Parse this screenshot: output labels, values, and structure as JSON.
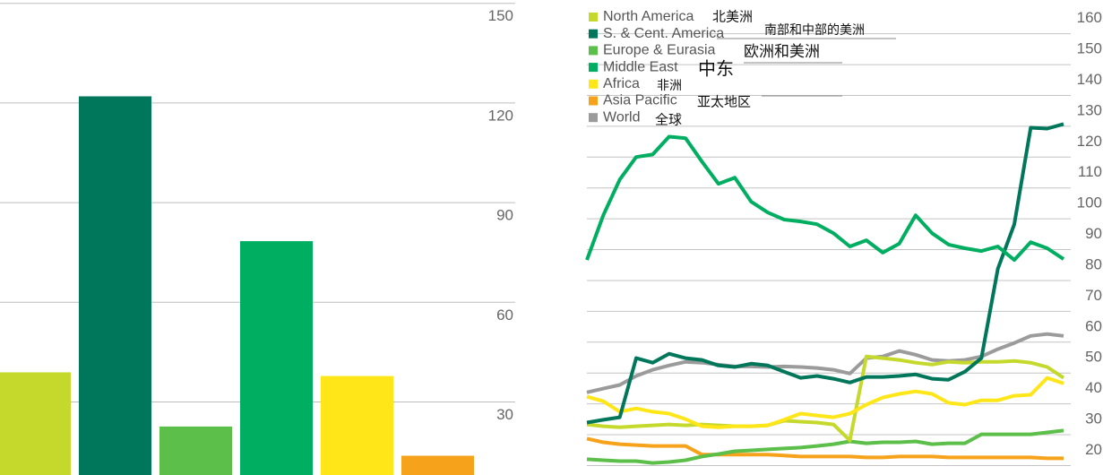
{
  "chart_data": [
    {
      "type": "bar",
      "categories": [
        null,
        null,
        null,
        null,
        null,
        null
      ],
      "values": [
        38.9,
        122,
        22.6,
        78.4,
        37.8,
        13.8
      ],
      "colors": [
        "#c5d92d",
        "#00775a",
        "#5cbf4a",
        "#00ae62",
        "#ffe619",
        "#f7a21b"
      ],
      "ylim": [
        8,
        151
      ],
      "yticks": [
        30,
        60,
        90,
        120,
        150
      ],
      "grid": true
    },
    {
      "type": "line",
      "categories": [
        null,
        null,
        null,
        null,
        null,
        null,
        null,
        null,
        null,
        null,
        null,
        null,
        null,
        null,
        null,
        null,
        null,
        null,
        null,
        null,
        null,
        null,
        null,
        null,
        null,
        null,
        null,
        null,
        null,
        null
      ],
      "ylim": [
        12,
        166
      ],
      "yticks": [
        20,
        30,
        40,
        50,
        60,
        70,
        80,
        90,
        100,
        110,
        120,
        130,
        140,
        150,
        160
      ],
      "grid": true,
      "series": [
        {
          "name": "North America",
          "label_zh": "北美洲",
          "color": "#c5d92d",
          "values": [
            28.4,
            27.8,
            27.5,
            27.8,
            28.1,
            28.4,
            28.1,
            28.4,
            28.1,
            27.8,
            27.8,
            28.1,
            29.6,
            29.3,
            29,
            28.4,
            23.2,
            50.4,
            49.9,
            49.3,
            48.4,
            47.8,
            48.7,
            48.4,
            48.7,
            48.7,
            49,
            48.4,
            47,
            43.5
          ]
        },
        {
          "name": "S. & Cent. America",
          "label_zh": "南部和中部的美洲",
          "color": "#00775a",
          "values": [
            29,
            29.9,
            30.7,
            49.9,
            48.4,
            51.3,
            49.9,
            49.3,
            47.5,
            47,
            48.1,
            47.5,
            45.5,
            43.5,
            44.1,
            43.2,
            42,
            43.8,
            43.8,
            44.1,
            44.6,
            43.2,
            42.9,
            45.5,
            49.9,
            78.8,
            93.3,
            124.6,
            124.3,
            125.8
          ]
        },
        {
          "name": "Europe & Eurasia",
          "label_zh": "欧洲和美洲",
          "color": "#5cbf4a",
          "values": [
            17.1,
            16.8,
            16.5,
            16.5,
            15.9,
            16.2,
            16.8,
            18,
            18.8,
            19.7,
            20,
            20.3,
            20.6,
            20.9,
            21.4,
            22,
            22.9,
            22.3,
            22.6,
            22.6,
            22.9,
            22,
            22.3,
            22.3,
            25.2,
            25.2,
            25.2,
            25.2,
            25.8,
            26.4
          ]
        },
        {
          "name": "Middle East",
          "label_zh": "中东",
          "color": "#00ae62",
          "values": [
            81.7,
            96.2,
            107.8,
            115.1,
            115.9,
            121.7,
            121.2,
            113.6,
            106.4,
            108.4,
            100.6,
            97.1,
            94.8,
            94.2,
            93.3,
            90.4,
            86.1,
            88.1,
            84.1,
            87,
            96.2,
            90.4,
            86.7,
            85.5,
            84.6,
            86.1,
            81.7,
            87.5,
            85.5,
            82
          ]
        },
        {
          "name": "Africa",
          "label_zh": "非洲",
          "color": "#ffe619",
          "values": [
            37.4,
            35.9,
            32.5,
            33.6,
            32.5,
            31.9,
            30.1,
            27.8,
            27.5,
            27.8,
            27.8,
            28.1,
            29.9,
            31.9,
            31.3,
            30.7,
            31.9,
            34.8,
            37.1,
            38.3,
            39.1,
            38.3,
            35.4,
            34.8,
            36.2,
            36.2,
            37.7,
            38,
            43.5,
            41.7
          ]
        },
        {
          "name": "Asia Pacific",
          "label_zh": "亚太地区",
          "color": "#f7a21b",
          "values": [
            23.8,
            22.6,
            22,
            21.7,
            21.4,
            21.4,
            21.4,
            18.6,
            18.6,
            18.6,
            18.6,
            18.6,
            18.3,
            18,
            18,
            18,
            18,
            17.7,
            17.7,
            18,
            18,
            18,
            17.7,
            17.7,
            17.7,
            17.7,
            17.7,
            17.7,
            17.4,
            17.4
          ]
        },
        {
          "name": "World",
          "label_zh": "全球",
          "color": "#9b9b9b",
          "values": [
            38.8,
            40,
            41.2,
            44.1,
            46.1,
            47.5,
            48.7,
            48.4,
            47.8,
            47.2,
            47.2,
            47,
            47.2,
            47,
            46.7,
            46.1,
            44.9,
            49.9,
            50.4,
            52.2,
            51,
            49.3,
            49,
            49.3,
            50.4,
            52.8,
            54.8,
            57.1,
            57.7,
            57.1
          ]
        }
      ]
    }
  ]
}
